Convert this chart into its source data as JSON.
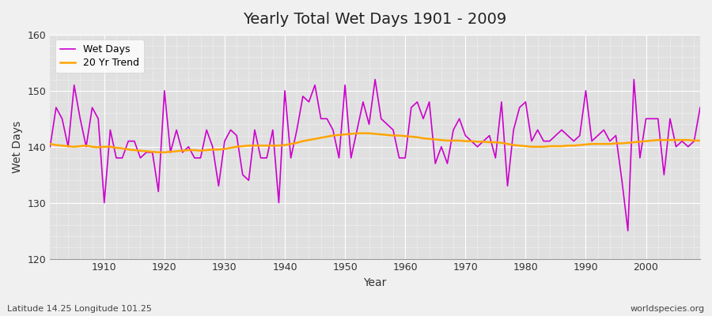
{
  "title": "Yearly Total Wet Days 1901 - 2009",
  "xlabel": "Year",
  "ylabel": "Wet Days",
  "ylim": [
    120,
    160
  ],
  "xlim": [
    1901,
    2009
  ],
  "bg_color": "#f0f0f0",
  "plot_bg_color": "#e0e0e0",
  "line_color": "#cc00cc",
  "trend_color": "#FFA500",
  "line_label": "Wet Days",
  "trend_label": "20 Yr Trend",
  "subtitle_left": "Latitude 14.25 Longitude 101.25",
  "subtitle_right": "worldspecies.org",
  "years": [
    1901,
    1902,
    1903,
    1904,
    1905,
    1906,
    1907,
    1908,
    1909,
    1910,
    1911,
    1912,
    1913,
    1914,
    1915,
    1916,
    1917,
    1918,
    1919,
    1920,
    1921,
    1922,
    1923,
    1924,
    1925,
    1926,
    1927,
    1928,
    1929,
    1930,
    1931,
    1932,
    1933,
    1934,
    1935,
    1936,
    1937,
    1938,
    1939,
    1940,
    1941,
    1942,
    1943,
    1944,
    1945,
    1946,
    1947,
    1948,
    1949,
    1950,
    1951,
    1952,
    1953,
    1954,
    1955,
    1956,
    1957,
    1958,
    1959,
    1960,
    1961,
    1962,
    1963,
    1964,
    1965,
    1966,
    1967,
    1968,
    1969,
    1970,
    1971,
    1972,
    1973,
    1974,
    1975,
    1976,
    1977,
    1978,
    1979,
    1980,
    1981,
    1982,
    1983,
    1984,
    1985,
    1986,
    1987,
    1988,
    1989,
    1990,
    1991,
    1992,
    1993,
    1994,
    1995,
    1996,
    1997,
    1998,
    1999,
    2000,
    2001,
    2002,
    2003,
    2004,
    2005,
    2006,
    2007,
    2008,
    2009
  ],
  "wet_days": [
    140,
    147,
    145,
    140,
    151,
    145,
    140,
    147,
    145,
    130,
    143,
    138,
    138,
    141,
    141,
    138,
    139,
    139,
    132,
    150,
    139,
    143,
    139,
    140,
    138,
    138,
    143,
    140,
    133,
    141,
    143,
    142,
    135,
    134,
    143,
    138,
    138,
    143,
    130,
    150,
    138,
    143,
    149,
    148,
    151,
    145,
    145,
    143,
    138,
    151,
    138,
    143,
    148,
    144,
    152,
    145,
    144,
    143,
    138,
    138,
    147,
    148,
    145,
    148,
    137,
    140,
    137,
    143,
    145,
    142,
    141,
    140,
    141,
    142,
    138,
    148,
    133,
    143,
    147,
    148,
    141,
    143,
    141,
    141,
    142,
    143,
    142,
    141,
    142,
    150,
    141,
    142,
    143,
    141,
    142,
    134,
    125,
    152,
    138,
    145,
    145,
    145,
    135,
    145,
    140,
    141,
    140,
    141,
    147
  ],
  "trend": [
    140.5,
    140.3,
    140.2,
    140.1,
    140.0,
    140.1,
    140.2,
    140.0,
    139.9,
    140.0,
    140.0,
    139.8,
    139.7,
    139.5,
    139.4,
    139.3,
    139.2,
    139.1,
    139.0,
    139.0,
    139.1,
    139.2,
    139.3,
    139.4,
    139.4,
    139.3,
    139.4,
    139.5,
    139.5,
    139.6,
    139.8,
    140.0,
    140.1,
    140.2,
    140.2,
    140.2,
    140.2,
    140.2,
    140.2,
    140.3,
    140.5,
    140.7,
    141.0,
    141.2,
    141.4,
    141.6,
    141.8,
    142.0,
    142.1,
    142.2,
    142.3,
    142.4,
    142.4,
    142.4,
    142.3,
    142.2,
    142.1,
    142.0,
    142.0,
    141.9,
    141.8,
    141.7,
    141.5,
    141.4,
    141.3,
    141.2,
    141.1,
    141.1,
    141.1,
    141.0,
    141.0,
    140.9,
    140.9,
    140.8,
    140.8,
    140.7,
    140.5,
    140.3,
    140.2,
    140.1,
    140.0,
    140.0,
    140.0,
    140.1,
    140.1,
    140.1,
    140.2,
    140.2,
    140.3,
    140.4,
    140.5,
    140.5,
    140.5,
    140.5,
    140.6,
    140.6,
    140.7,
    140.8,
    140.9,
    141.0,
    141.1,
    141.2,
    141.2,
    141.2,
    141.2,
    141.2,
    141.2,
    141.1,
    141.1
  ]
}
